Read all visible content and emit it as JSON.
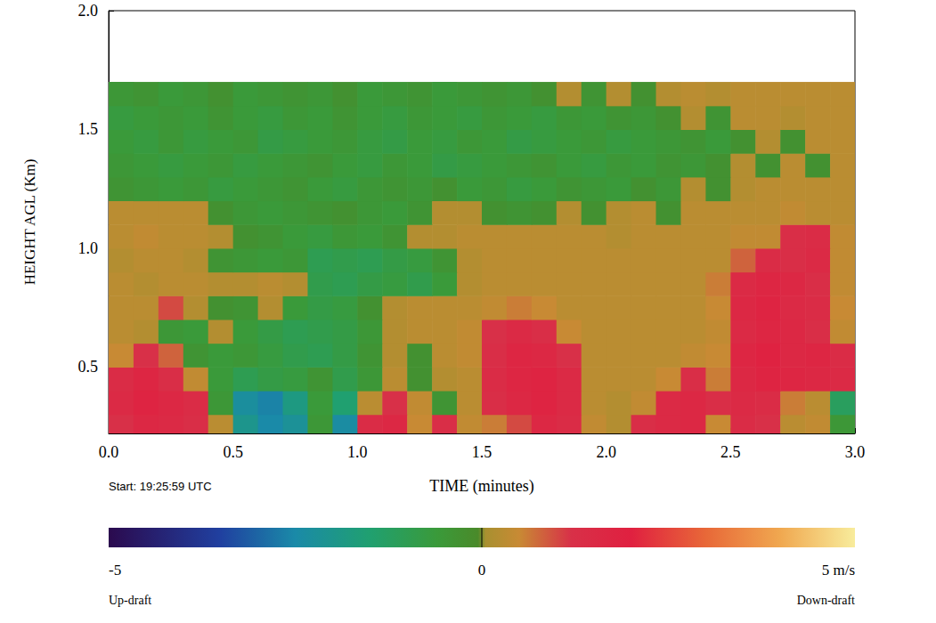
{
  "chart_data": {
    "type": "heatmap",
    "x_label": "TIME (minutes)",
    "y_label": "HEIGHT AGL (Km)",
    "annotation": "Start: 19:25:59 UTC",
    "xlim": [
      0,
      3
    ],
    "xticks": [
      {
        "value": 0,
        "label": "0.0"
      },
      {
        "value": 0.5,
        "label": "0.5"
      },
      {
        "value": 1,
        "label": "1.0"
      },
      {
        "value": 1.5,
        "label": "1.5"
      },
      {
        "value": 2,
        "label": "2.0"
      },
      {
        "value": 2.5,
        "label": "2.5"
      },
      {
        "value": 3,
        "label": "3.0"
      }
    ],
    "ylim": [
      0.22,
      2.0
    ],
    "yticks": [
      {
        "value": 0.5,
        "label": "0.5"
      },
      {
        "value": 1,
        "label": "1.0"
      },
      {
        "value": 1.5,
        "label": "1.5"
      },
      {
        "value": 2,
        "label": "2.0"
      }
    ],
    "x_edges": [
      0,
      0.1,
      0.2,
      0.3,
      0.4,
      0.5,
      0.6,
      0.7,
      0.8,
      0.9,
      1.0,
      1.1,
      1.2,
      1.3,
      1.4,
      1.5,
      1.6,
      1.7,
      1.8,
      1.9,
      2.0,
      2.1,
      2.2,
      2.3,
      2.4,
      2.5,
      2.6,
      2.7,
      2.8,
      2.9,
      3.0
    ],
    "y_edges": [
      0.22,
      0.3,
      0.4,
      0.5,
      0.6,
      0.7,
      0.8,
      0.9,
      1.0,
      1.1,
      1.2,
      1.3,
      1.4,
      1.5,
      1.6,
      1.7
    ],
    "cells": [
      [
        1.2,
        1.6,
        1.5,
        1.3,
        0.3,
        -2.0,
        -2.5,
        -2.2,
        -0.5,
        -2.4,
        1.4,
        1.6,
        0.5,
        1.3,
        0.4,
        0.6,
        1.0,
        1.6,
        1.4,
        0.4,
        0.2,
        1.3,
        1.5,
        1.6,
        0.5,
        1.4,
        1.2,
        0.3,
        0.4,
        -0.5
      ],
      [
        1.5,
        1.8,
        1.6,
        1.4,
        -0.5,
        -2.3,
        -2.6,
        -1.8,
        -0.6,
        -1.5,
        0.3,
        1.2,
        0.4,
        -0.4,
        0.3,
        1.3,
        1.6,
        1.8,
        1.5,
        0.3,
        0.2,
        0.4,
        1.5,
        1.6,
        1.3,
        1.5,
        1.4,
        0.6,
        0.3,
        -1.2
      ],
      [
        1.4,
        1.7,
        1.3,
        0.4,
        -0.6,
        -1.0,
        -0.8,
        -0.7,
        -0.4,
        -0.9,
        -0.5,
        0.3,
        -0.3,
        0.2,
        0.3,
        1.4,
        1.7,
        1.8,
        1.5,
        0.3,
        0.3,
        0.3,
        0.5,
        1.3,
        0.6,
        1.6,
        1.8,
        1.7,
        1.6,
        1.5
      ],
      [
        0.5,
        1.2,
        0.8,
        -0.4,
        -0.6,
        -0.5,
        -0.7,
        -0.9,
        -1.0,
        -0.8,
        -0.4,
        0.2,
        -0.3,
        0.3,
        0.4,
        1.3,
        1.7,
        1.6,
        1.2,
        0.3,
        0.3,
        0.3,
        0.3,
        0.4,
        0.5,
        1.7,
        1.9,
        1.6,
        1.7,
        1.4
      ],
      [
        0.3,
        0.2,
        -0.5,
        -0.6,
        0.2,
        -0.6,
        -0.8,
        -1.0,
        -0.9,
        -0.8,
        -0.5,
        0.2,
        0.3,
        0.3,
        0.4,
        1.2,
        1.5,
        1.3,
        0.5,
        0.3,
        0.3,
        0.3,
        0.3,
        0.3,
        0.4,
        1.5,
        1.7,
        1.6,
        1.3,
        0.4
      ],
      [
        0.3,
        0.3,
        1.0,
        0.2,
        -0.3,
        -0.4,
        0.2,
        -0.6,
        -0.8,
        -0.7,
        -0.3,
        0.2,
        0.3,
        0.3,
        0.3,
        0.4,
        0.6,
        0.5,
        0.3,
        0.3,
        0.3,
        0.3,
        0.3,
        0.3,
        0.5,
        1.6,
        1.8,
        1.5,
        1.4,
        0.5
      ],
      [
        0.3,
        0.2,
        0.3,
        0.3,
        0.2,
        0.2,
        0.3,
        0.2,
        -0.9,
        -1.0,
        -0.8,
        -0.7,
        -0.9,
        -0.6,
        0.2,
        0.3,
        0.3,
        0.3,
        0.3,
        0.3,
        0.3,
        0.3,
        0.3,
        0.3,
        0.6,
        1.5,
        1.7,
        1.6,
        1.3,
        0.4
      ],
      [
        0.2,
        0.3,
        0.3,
        0.2,
        -0.4,
        -0.5,
        -0.6,
        -0.5,
        -1.0,
        -0.9,
        -1.0,
        -0.8,
        -0.7,
        -0.4,
        0.2,
        0.3,
        0.3,
        0.3,
        0.3,
        0.3,
        0.3,
        0.3,
        0.3,
        0.3,
        0.3,
        0.8,
        1.4,
        1.3,
        1.5,
        0.4
      ],
      [
        0.3,
        0.4,
        0.3,
        0.3,
        0.2,
        -0.3,
        -0.4,
        -0.6,
        -0.7,
        -0.5,
        -0.6,
        -0.4,
        0.2,
        0.2,
        0.3,
        0.3,
        0.3,
        0.3,
        0.3,
        0.3,
        0.2,
        0.3,
        0.3,
        0.3,
        0.3,
        0.4,
        0.4,
        1.3,
        1.4,
        0.4
      ],
      [
        0.3,
        0.3,
        0.3,
        0.3,
        -0.3,
        -0.5,
        -0.6,
        -0.5,
        -0.4,
        -0.3,
        -0.5,
        -0.6,
        -0.4,
        0.2,
        0.2,
        -0.3,
        -0.4,
        -0.3,
        0.2,
        -0.3,
        0.2,
        0.3,
        -0.3,
        0.3,
        0.3,
        0.3,
        0.3,
        0.4,
        0.3,
        0.3
      ],
      [
        -0.4,
        -0.5,
        -0.6,
        -0.5,
        -0.7,
        -0.6,
        -0.5,
        -0.4,
        -0.6,
        -0.7,
        -0.5,
        -0.4,
        -0.5,
        -0.3,
        -0.6,
        -0.5,
        -0.7,
        -0.6,
        -0.4,
        -0.5,
        -0.6,
        -0.3,
        -0.5,
        0.2,
        -0.3,
        0.2,
        0.3,
        0.3,
        0.3,
        0.3
      ],
      [
        -0.5,
        -0.6,
        -0.7,
        -0.6,
        -0.5,
        -0.7,
        -0.6,
        -0.5,
        -0.4,
        -0.6,
        -0.7,
        -0.5,
        -0.6,
        -0.8,
        -0.7,
        -0.6,
        -0.5,
        -0.4,
        -0.6,
        -0.7,
        -0.5,
        -0.6,
        -0.4,
        -0.5,
        -0.3,
        0.2,
        -0.3,
        0.3,
        -0.3,
        0.3
      ],
      [
        -0.6,
        -0.7,
        -0.5,
        -0.7,
        -0.6,
        -0.5,
        -0.8,
        -0.7,
        -0.6,
        -0.5,
        -0.7,
        -0.8,
        -0.6,
        -0.7,
        -0.5,
        -0.6,
        -0.8,
        -0.7,
        -0.6,
        -0.5,
        -0.7,
        -0.6,
        -0.5,
        -0.4,
        -0.6,
        -0.3,
        0.2,
        -0.3,
        0.3,
        0.3
      ],
      [
        -0.7,
        -0.6,
        -0.5,
        -0.6,
        -0.4,
        -0.6,
        -0.7,
        -0.5,
        -0.6,
        -0.4,
        -0.6,
        -0.7,
        -0.5,
        -0.6,
        -0.7,
        -0.5,
        -0.6,
        -0.7,
        -0.5,
        -0.6,
        -0.4,
        -0.5,
        -0.3,
        0.2,
        -0.4,
        0.3,
        0.3,
        0.2,
        0.3,
        0.3
      ],
      [
        -0.5,
        -0.4,
        -0.6,
        -0.5,
        -0.3,
        -0.6,
        -0.5,
        -0.4,
        -0.5,
        -0.3,
        -0.6,
        -0.5,
        -0.4,
        -0.6,
        -0.5,
        -0.4,
        -0.5,
        -0.3,
        0.2,
        -0.4,
        0.2,
        -0.3,
        0.2,
        0.3,
        0.2,
        0.3,
        0.3,
        0.3,
        0.3,
        0.3
      ]
    ],
    "colorbar": {
      "range": [
        -5,
        5
      ],
      "ticks": [
        -5,
        0,
        {
          "value": 5,
          "label": "5 m/s"
        }
      ],
      "end_labels": [
        "Up-draft",
        "Down-draft"
      ]
    }
  }
}
